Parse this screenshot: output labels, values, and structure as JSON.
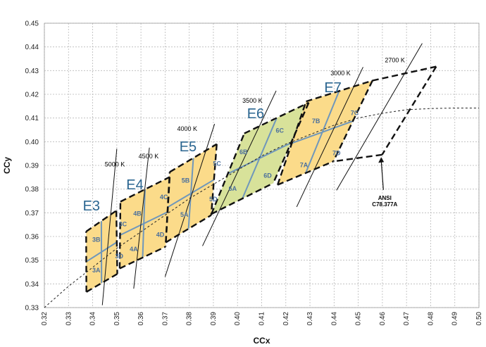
{
  "chart_data": {
    "type": "scatter",
    "xlabel": "CCx",
    "ylabel": "CCy",
    "xlim": [
      0.32,
      0.5
    ],
    "ylim": [
      0.33,
      0.45
    ],
    "x_ticks": [
      "0.32",
      "0.33",
      "0.34",
      "0.35",
      "0.36",
      "0.37",
      "0.38",
      "0.39",
      "0.40",
      "0.41",
      "0.42",
      "0.43",
      "0.44",
      "0.45",
      "0.46",
      "0.47",
      "0.48",
      "0.49",
      "0.50"
    ],
    "y_ticks": [
      "0.33",
      "0.34",
      "0.35",
      "0.36",
      "0.37",
      "0.38",
      "0.39",
      "0.40",
      "0.41",
      "0.42",
      "0.43",
      "0.44",
      "0.45"
    ],
    "grid": true,
    "colors": {
      "yellow_fill": "#fbdb8a",
      "green_fill": "#d8e29a",
      "blue_line": "#6f97bb",
      "label_blue": "#4a6f9c",
      "group_blue": "#2a6590"
    },
    "groups": [
      {
        "name": "E3",
        "x": 0.3395,
        "y": 0.3725,
        "fill": "#fbdb8a"
      },
      {
        "name": "E4",
        "x": 0.3575,
        "y": 0.3815,
        "fill": "#fbdb8a"
      },
      {
        "name": "E5",
        "x": 0.3795,
        "y": 0.3975,
        "fill": "#fbdb8a"
      },
      {
        "name": "E6",
        "x": 0.4075,
        "y": 0.4115,
        "fill": "#d8e29a"
      },
      {
        "name": "E7",
        "x": 0.4395,
        "y": 0.4225,
        "fill": "#fbdb8a"
      }
    ],
    "cells": [
      {
        "label": "3A",
        "x": 0.3415,
        "y": 0.3455
      },
      {
        "label": "3B",
        "x": 0.3415,
        "y": 0.3585
      },
      {
        "label": "3C",
        "x": 0.3525,
        "y": 0.365
      },
      {
        "label": "3D",
        "x": 0.351,
        "y": 0.3515
      },
      {
        "label": "4A",
        "x": 0.357,
        "y": 0.3545
      },
      {
        "label": "4B",
        "x": 0.3585,
        "y": 0.3695
      },
      {
        "label": "4C",
        "x": 0.3695,
        "y": 0.3765
      },
      {
        "label": "4D",
        "x": 0.368,
        "y": 0.3605
      },
      {
        "label": "5A",
        "x": 0.378,
        "y": 0.369
      },
      {
        "label": "5B",
        "x": 0.3785,
        "y": 0.3835
      },
      {
        "label": "5C",
        "x": 0.3915,
        "y": 0.3905
      },
      {
        "label": "5D",
        "x": 0.39,
        "y": 0.3755
      },
      {
        "label": "6A",
        "x": 0.398,
        "y": 0.38
      },
      {
        "label": "6B",
        "x": 0.4025,
        "y": 0.3955
      },
      {
        "label": "6C",
        "x": 0.4175,
        "y": 0.4045
      },
      {
        "label": "6D",
        "x": 0.4125,
        "y": 0.3855
      },
      {
        "label": "7A",
        "x": 0.4275,
        "y": 0.39
      },
      {
        "label": "7B",
        "x": 0.4325,
        "y": 0.4085
      },
      {
        "label": "7C",
        "x": 0.4485,
        "y": 0.412
      },
      {
        "label": "7D",
        "x": 0.441,
        "y": 0.395
      }
    ],
    "regions": [
      {
        "name": "E3",
        "fill": "#fbdb8a",
        "corners": [
          [
            0.3374,
            0.3366
          ],
          [
            0.3373,
            0.3621
          ],
          [
            0.3498,
            0.3709
          ],
          [
            0.3502,
            0.3442
          ]
        ],
        "mid": [
          [
            0.3374,
            0.3494
          ],
          [
            0.35,
            0.3576
          ]
        ],
        "cross": [
          [
            0.3437,
            0.3404
          ],
          [
            0.3436,
            0.3665
          ]
        ]
      },
      {
        "name": "E4",
        "fill": "#fbdb8a",
        "corners": [
          [
            0.3512,
            0.3465
          ],
          [
            0.3515,
            0.3747
          ],
          [
            0.3719,
            0.3851
          ],
          [
            0.3702,
            0.3557
          ]
        ],
        "mid": [
          [
            0.3514,
            0.3606
          ],
          [
            0.3711,
            0.3704
          ]
        ],
        "cross": [
          [
            0.3607,
            0.3511
          ],
          [
            0.3617,
            0.3799
          ]
        ]
      },
      {
        "name": "E5",
        "fill": "#fbdb8a",
        "corners": [
          [
            0.3703,
            0.3575
          ],
          [
            0.3719,
            0.3872
          ],
          [
            0.3914,
            0.399
          ],
          [
            0.3891,
            0.369
          ]
        ],
        "mid": [
          [
            0.3711,
            0.3724
          ],
          [
            0.3903,
            0.384
          ]
        ],
        "cross": [
          [
            0.3797,
            0.3633
          ],
          [
            0.3817,
            0.3931
          ]
        ]
      },
      {
        "name": "E6",
        "fill": "#d8e29a",
        "corners": [
          [
            0.3892,
            0.3695
          ],
          [
            0.4028,
            0.4035
          ],
          [
            0.4295,
            0.4165
          ],
          [
            0.4148,
            0.3825
          ]
        ],
        "mid": [
          [
            0.396,
            0.3865
          ],
          [
            0.4222,
            0.3995
          ]
        ],
        "cross": [
          [
            0.402,
            0.376
          ],
          [
            0.4162,
            0.41
          ]
        ]
      },
      {
        "name": "E7",
        "fill": "#fbdb8a",
        "corners": [
          [
            0.4166,
            0.3818
          ],
          [
            0.4284,
            0.417
          ],
          [
            0.4559,
            0.4258
          ],
          [
            0.4397,
            0.3917
          ]
        ],
        "mid": [
          [
            0.4225,
            0.3994
          ],
          [
            0.4478,
            0.4087
          ]
        ],
        "cross": [
          [
            0.4282,
            0.3867
          ],
          [
            0.4421,
            0.4214
          ]
        ]
      }
    ],
    "outer_dashed_boundary": {
      "upper": [
        [
          0.3373,
          0.3621
        ],
        [
          0.3498,
          0.3709
        ],
        [
          0.3515,
          0.3747
        ],
        [
          0.3719,
          0.3851
        ],
        [
          0.3914,
          0.399
        ],
        [
          0.4028,
          0.4035
        ],
        [
          0.4295,
          0.4165
        ],
        [
          0.4284,
          0.417
        ],
        [
          0.4559,
          0.4258
        ],
        [
          0.4823,
          0.4317
        ]
      ],
      "right": [
        [
          0.4823,
          0.4317
        ],
        [
          0.4599,
          0.3945
        ]
      ],
      "lower": [
        [
          0.4599,
          0.3945
        ],
        [
          0.4397,
          0.3917
        ],
        [
          0.4166,
          0.3818
        ],
        [
          0.4148,
          0.3825
        ],
        [
          0.3892,
          0.3695
        ],
        [
          0.3891,
          0.369
        ],
        [
          0.3703,
          0.3575
        ],
        [
          0.3702,
          0.3557
        ],
        [
          0.3512,
          0.3465
        ],
        [
          0.3502,
          0.3442
        ],
        [
          0.3374,
          0.3366
        ]
      ]
    },
    "planckian_locus_dotted": [
      [
        0.32,
        0.33
      ],
      [
        0.33,
        0.339
      ],
      [
        0.34,
        0.347
      ],
      [
        0.35,
        0.355
      ],
      [
        0.36,
        0.362
      ],
      [
        0.37,
        0.369
      ],
      [
        0.38,
        0.376
      ],
      [
        0.39,
        0.382
      ],
      [
        0.4,
        0.388
      ],
      [
        0.41,
        0.394
      ],
      [
        0.42,
        0.399
      ],
      [
        0.43,
        0.403
      ],
      [
        0.44,
        0.407
      ],
      [
        0.45,
        0.41
      ],
      [
        0.46,
        0.412
      ],
      [
        0.47,
        0.4135
      ],
      [
        0.48,
        0.414
      ],
      [
        0.49,
        0.4142
      ],
      [
        0.5,
        0.4142
      ]
    ],
    "isotherms": [
      {
        "label": "5000 K",
        "from": [
          0.344,
          0.331
        ],
        "to": [
          0.35,
          0.397
        ],
        "label_at": [
          0.345,
          0.3895
        ]
      },
      {
        "label": "4500 K",
        "from": [
          0.357,
          0.338
        ],
        "to": [
          0.3635,
          0.3975
        ],
        "label_at": [
          0.359,
          0.393
        ]
      },
      {
        "label": "4000 K",
        "from": [
          0.37,
          0.343
        ],
        "to": [
          0.3905,
          0.4075
        ],
        "label_at": [
          0.375,
          0.4045
        ]
      },
      {
        "label": "3500 K",
        "from": [
          0.3855,
          0.356
        ],
        "to": [
          0.416,
          0.4215
        ],
        "label_at": [
          0.402,
          0.4165
        ]
      },
      {
        "label": "3000 K",
        "from": [
          0.4245,
          0.3725
        ],
        "to": [
          0.452,
          0.4315
        ],
        "label_at": [
          0.4385,
          0.428
        ]
      },
      {
        "label": "2700 K",
        "from": [
          0.441,
          0.3795
        ],
        "to": [
          0.4765,
          0.4415
        ],
        "label_at": [
          0.461,
          0.4335
        ]
      }
    ],
    "annotation": {
      "text_lines": [
        "ANSI",
        "C78.377A"
      ],
      "text_at": [
        0.461,
        0.3755
      ],
      "arrow_to": [
        0.4595,
        0.3935
      ]
    }
  }
}
